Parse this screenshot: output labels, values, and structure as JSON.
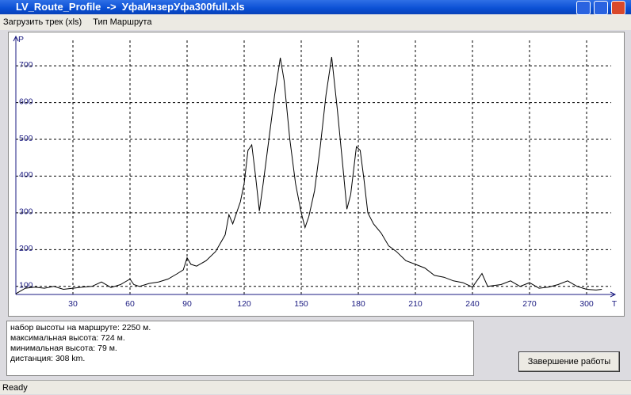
{
  "window": {
    "title": "LV_Route_Profile  ->  УфаИнзерУфа300full.xls"
  },
  "menu": [
    "Загрузить трек (xls)",
    "Тип Маршрута"
  ],
  "chart_data": {
    "type": "line",
    "y_label": "P",
    "x_label": "T",
    "color": "#000000",
    "tick_color": "#1a1a80",
    "grid": true,
    "x": [
      0,
      5,
      10,
      15,
      20,
      25,
      30,
      35,
      40,
      45,
      50,
      55,
      60,
      62,
      65,
      70,
      75,
      80,
      85,
      88,
      90,
      92,
      95,
      100,
      105,
      110,
      112,
      114,
      116,
      118,
      120,
      122,
      124,
      126,
      128,
      130,
      133,
      136,
      139,
      141,
      144,
      147,
      150,
      152,
      154,
      157,
      160,
      163,
      166,
      169,
      172,
      174,
      176,
      179,
      181,
      183,
      185,
      188,
      192,
      196,
      200,
      205,
      210,
      215,
      220,
      225,
      230,
      235,
      240,
      245,
      248,
      255,
      260,
      265,
      270,
      275,
      280,
      285,
      290,
      295,
      300,
      305,
      308
    ],
    "values": [
      80,
      95,
      98,
      95,
      100,
      92,
      95,
      98,
      100,
      112,
      97,
      105,
      120,
      105,
      100,
      108,
      112,
      120,
      135,
      145,
      178,
      160,
      155,
      170,
      195,
      240,
      295,
      270,
      300,
      330,
      380,
      470,
      485,
      400,
      305,
      380,
      500,
      620,
      722,
      660,
      500,
      380,
      300,
      260,
      290,
      360,
      480,
      620,
      724,
      580,
      420,
      310,
      350,
      480,
      470,
      390,
      300,
      270,
      245,
      210,
      195,
      170,
      160,
      150,
      130,
      125,
      115,
      110,
      98,
      135,
      100,
      105,
      115,
      100,
      110,
      95,
      98,
      105,
      115,
      100,
      92,
      90,
      92
    ],
    "xlim": [
      0,
      315
    ],
    "ylim": [
      78,
      780
    ],
    "xticks": [
      30,
      60,
      90,
      120,
      150,
      180,
      210,
      240,
      270,
      300
    ],
    "yticks": [
      100,
      200,
      300,
      400,
      500,
      600,
      700
    ]
  },
  "info": {
    "lines": [
      "набор высоты на маршруте: 2250 м.",
      "максимальная высота: 724 м.",
      "минимальная высота: 79 м.",
      "дистанция: 308 km."
    ]
  },
  "button": "Завершение работы",
  "status": "Ready"
}
